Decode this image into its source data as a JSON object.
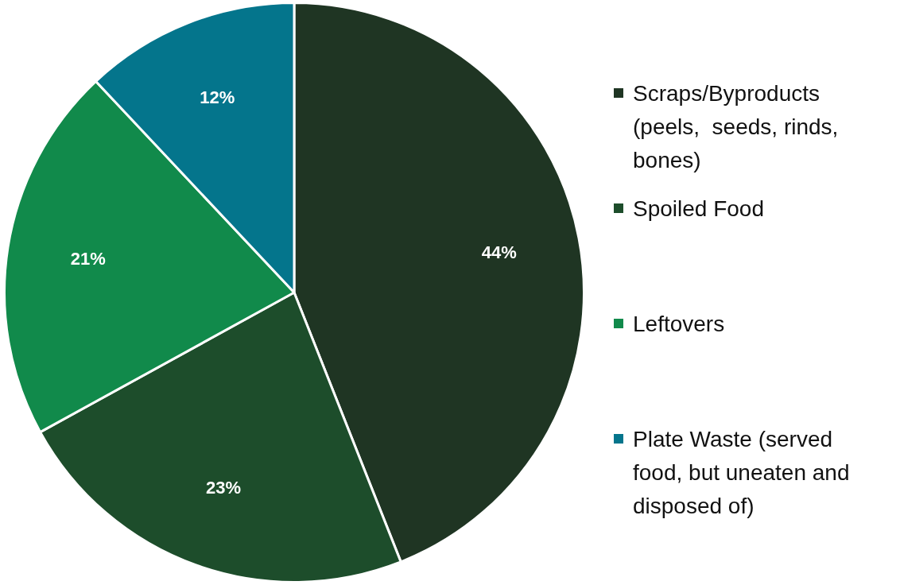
{
  "chart_data": {
    "type": "pie",
    "categories": [
      "Scraps/Byproducts (peels,  seeds, rinds, bones)",
      "Spoiled Food",
      "Leftovers",
      "Plate Waste (served food, but uneaten and disposed of)"
    ],
    "values": [
      44,
      23,
      21,
      12
    ],
    "colors": [
      "#1f3523",
      "#1d4d2b",
      "#118a4b",
      "#04758c"
    ],
    "value_labels": [
      "44%",
      "23%",
      "21%",
      "12%"
    ],
    "legend": "right"
  }
}
